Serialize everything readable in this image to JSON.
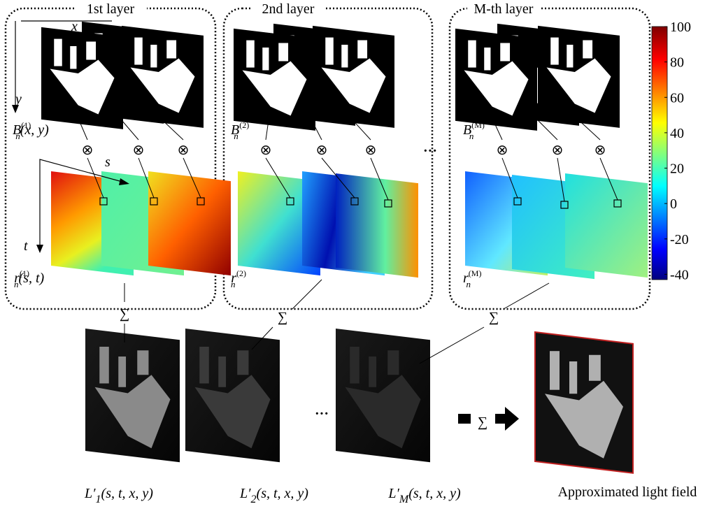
{
  "layers": [
    {
      "title": "1st layer",
      "binary_label": {
        "base": "B",
        "sub": "n",
        "sup": "(1)",
        "args": "(x, y)"
      },
      "coef_label": {
        "base": "r",
        "sub": "n",
        "sup": "(1)",
        "args": "(s, t)"
      }
    },
    {
      "title": "2nd layer",
      "binary_label": {
        "base": "B",
        "sub": "n",
        "sup": "(2)"
      },
      "coef_label": {
        "base": "r",
        "sub": "n",
        "sup": "(2)"
      }
    },
    {
      "title": "M-th layer",
      "binary_label": {
        "base": "B",
        "sub": "n",
        "sup": "(M)"
      },
      "coef_label": {
        "base": "r",
        "sub": "n",
        "sup": "(M)"
      }
    }
  ],
  "axes": {
    "x": "x",
    "y": "y",
    "s": "s",
    "t": "t"
  },
  "operators": {
    "sum": "∑",
    "product": "⊗",
    "ellipsis": "···"
  },
  "outputs": [
    {
      "base": "L′",
      "sub": "1",
      "args": "(s, t, x, y)"
    },
    {
      "base": "L′",
      "sub": "2",
      "args": "(s, t, x, y)"
    },
    {
      "base": "L′",
      "sub": "M",
      "args": "(s, t, x, y)"
    }
  ],
  "result": "Approximated light field",
  "colorbar": {
    "range": [
      -43,
      100
    ],
    "ticks": [
      100,
      80,
      60,
      40,
      20,
      0,
      -20,
      -40
    ]
  }
}
